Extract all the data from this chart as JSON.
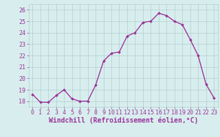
{
  "x": [
    0,
    1,
    2,
    3,
    4,
    5,
    6,
    7,
    8,
    9,
    10,
    11,
    12,
    13,
    14,
    15,
    16,
    17,
    18,
    19,
    20,
    21,
    22,
    23
  ],
  "y": [
    18.6,
    17.9,
    17.9,
    18.5,
    19.0,
    18.2,
    18.0,
    18.0,
    19.4,
    21.5,
    22.2,
    22.3,
    23.7,
    24.0,
    24.9,
    25.0,
    25.7,
    25.5,
    25.0,
    24.7,
    23.4,
    22.0,
    19.5,
    18.3
  ],
  "line_color": "#993399",
  "marker": "D",
  "marker_size": 2.0,
  "bg_color": "#d8eeee",
  "grid_color": "#b0cccc",
  "xlabel": "Windchill (Refroidissement éolien,°C)",
  "ylim": [
    17.5,
    26.5
  ],
  "xlim": [
    -0.5,
    23.5
  ],
  "yticks": [
    18,
    19,
    20,
    21,
    22,
    23,
    24,
    25,
    26
  ],
  "xticks": [
    0,
    1,
    2,
    3,
    4,
    5,
    6,
    7,
    8,
    9,
    10,
    11,
    12,
    13,
    14,
    15,
    16,
    17,
    18,
    19,
    20,
    21,
    22,
    23
  ],
  "tick_label_size": 6.0,
  "xlabel_size": 7.0,
  "line_width": 1.0
}
